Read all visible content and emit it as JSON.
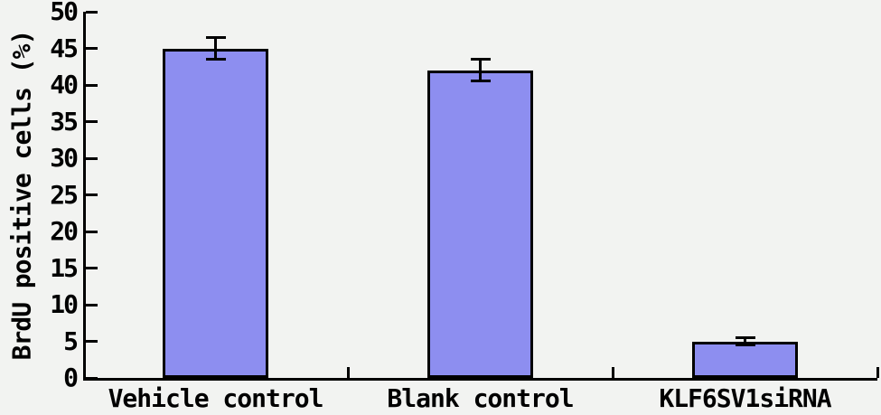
{
  "chart_data": {
    "type": "bar",
    "title": "",
    "xlabel": "",
    "ylabel": "BrdU positive cells (%)",
    "categories": [
      "Vehicle control",
      "Blank control",
      "KLF6SV1siRNA"
    ],
    "values": [
      45,
      42,
      5
    ],
    "errors": [
      1.5,
      1.5,
      0.5
    ],
    "ylim": [
      0,
      50
    ],
    "yticks": [
      0,
      5,
      10,
      15,
      20,
      25,
      30,
      35,
      40,
      45,
      50
    ],
    "grid": false,
    "legend": null,
    "bar_color": "#8d8ef0",
    "bar_border_color": "#000000",
    "axis_color": "#000000",
    "background_color": "#f2f3f1"
  }
}
